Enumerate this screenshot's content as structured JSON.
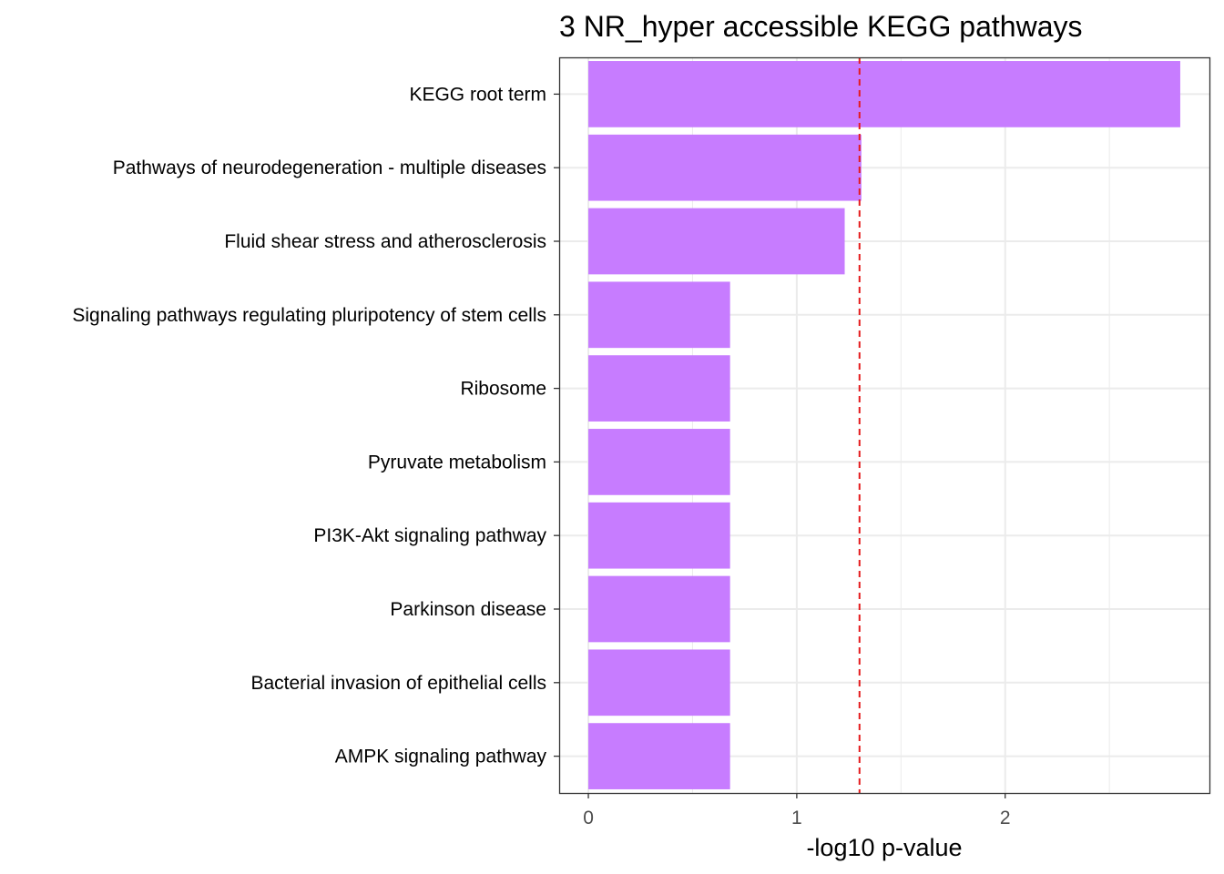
{
  "chart_data": {
    "type": "bar",
    "orientation": "horizontal",
    "title": "3 NR_hyper accessible KEGG pathways",
    "xlabel": "-log10 p-value",
    "ylabel": "",
    "categories": [
      "KEGG root term",
      "Pathways of neurodegeneration - multiple diseases",
      "Fluid shear stress and atherosclerosis",
      "Signaling pathways regulating pluripotency of stem cells",
      "Ribosome",
      "Pyruvate metabolism",
      "PI3K-Akt signaling pathway",
      "Parkinson disease",
      "Bacterial invasion of epithelial cells",
      "AMPK signaling pathway"
    ],
    "values": [
      2.84,
      1.31,
      1.23,
      0.68,
      0.68,
      0.68,
      0.68,
      0.68,
      0.68,
      0.68
    ],
    "xlim": [
      -0.14,
      2.98
    ],
    "x_ticks": [
      0,
      1,
      2
    ],
    "x_tick_labels": [
      "0",
      "1",
      "2"
    ],
    "threshold_line": {
      "value": 1.301,
      "style": "dashed",
      "color": "#e41a1c"
    },
    "grid": true,
    "legend": "none",
    "colors": {
      "bar": "#c77cff",
      "grid": "#ebebeb",
      "panel_border": "#333333",
      "tick_label": "#4d4d4d"
    }
  }
}
